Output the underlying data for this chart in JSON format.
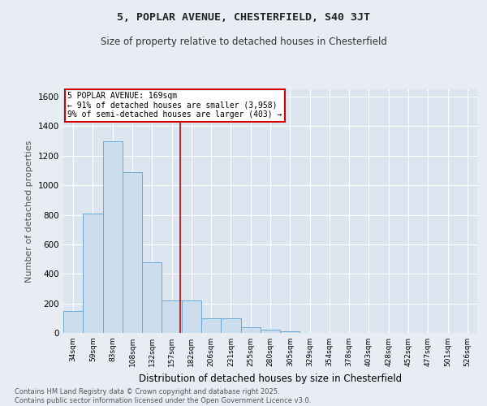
{
  "title": "5, POPLAR AVENUE, CHESTERFIELD, S40 3JT",
  "subtitle": "Size of property relative to detached houses in Chesterfield",
  "xlabel": "Distribution of detached houses by size in Chesterfield",
  "ylabel": "Number of detached properties",
  "bin_labels": [
    "34sqm",
    "59sqm",
    "83sqm",
    "108sqm",
    "132sqm",
    "157sqm",
    "182sqm",
    "206sqm",
    "231sqm",
    "255sqm",
    "280sqm",
    "305sqm",
    "329sqm",
    "354sqm",
    "378sqm",
    "403sqm",
    "428sqm",
    "452sqm",
    "477sqm",
    "501sqm",
    "526sqm"
  ],
  "bar_heights": [
    150,
    810,
    1300,
    1090,
    480,
    220,
    220,
    100,
    100,
    40,
    20,
    10,
    0,
    0,
    0,
    0,
    0,
    0,
    0,
    0,
    0
  ],
  "bar_color": "#ccdded",
  "bar_edge_color": "#6aaad4",
  "fig_bg_color": "#e8edf3",
  "plot_bg_color": "#dce6f0",
  "grid_color": "#ffffff",
  "vline_x": 5.42,
  "vline_color": "#cc0000",
  "ylim": [
    0,
    1650
  ],
  "yticks": [
    0,
    200,
    400,
    600,
    800,
    1000,
    1200,
    1400,
    1600
  ],
  "annotation_text": "5 POPLAR AVENUE: 169sqm\n← 91% of detached houses are smaller (3,958)\n9% of semi-detached houses are larger (403) →",
  "footer_line1": "Contains HM Land Registry data © Crown copyright and database right 2025.",
  "footer_line2": "Contains public sector information licensed under the Open Government Licence v3.0."
}
